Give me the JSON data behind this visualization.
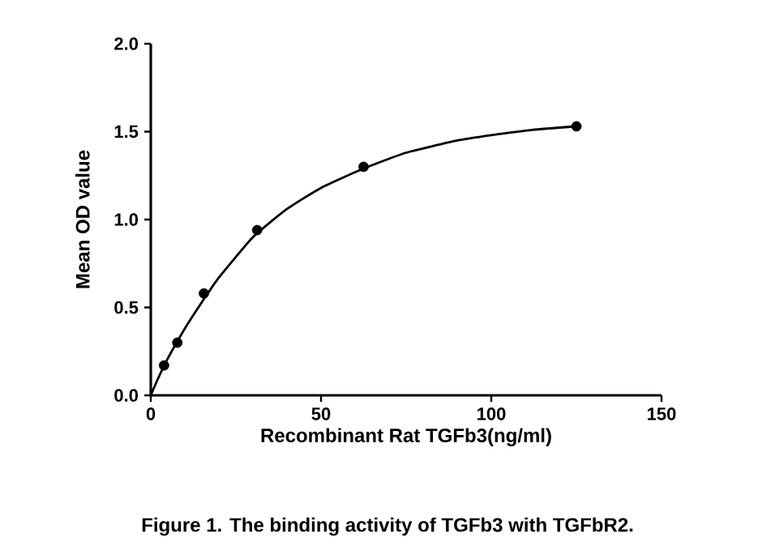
{
  "chart_data": {
    "type": "scatter",
    "title": "Figure 1. The binding activity of TGFb3 with TGFbR2.",
    "xlabel": "Recombinant Rat TGFb3(ng/ml)",
    "ylabel": "Mean OD value",
    "xlim": [
      0,
      150
    ],
    "xticks": [
      0,
      50,
      100,
      150
    ],
    "ylim": [
      0,
      2
    ],
    "yticks": [
      {
        "value": 0,
        "label": "0.0"
      },
      {
        "value": 0.5,
        "label": "0.5"
      },
      {
        "value": 1,
        "label": "1.0"
      },
      {
        "value": 1.5,
        "label": "1.5"
      },
      {
        "value": 2,
        "label": "2.0"
      }
    ],
    "grid": false,
    "series": [
      {
        "color": "#000000",
        "marker": "circle",
        "x": [
          3.9,
          7.8,
          15.6,
          31.25,
          62.5,
          125
        ],
        "values": [
          0.17,
          0.3,
          0.58,
          0.94,
          1.3,
          1.53
        ]
      },
      {
        "type": "line",
        "color": "#000000",
        "marker": "none",
        "line_style": "solid",
        "x": [
          0,
          2,
          5,
          10,
          15,
          20,
          30,
          40,
          50,
          62.5,
          75,
          90,
          100,
          112,
          125
        ],
        "values": [
          0,
          0.09,
          0.21,
          0.38,
          0.53,
          0.67,
          0.9,
          1.06,
          1.18,
          1.29,
          1.38,
          1.45,
          1.48,
          1.51,
          1.53
        ]
      }
    ]
  }
}
